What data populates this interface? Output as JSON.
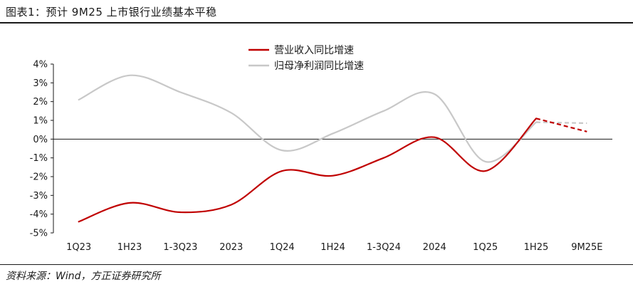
{
  "header": {
    "title": "图表1：预计 9M25 上市银行业绩基本平稳"
  },
  "footer": {
    "source": "资料来源：Wind，方正证券研究所"
  },
  "chart_data": {
    "type": "line",
    "categories": [
      "1Q23",
      "1H23",
      "1-3Q23",
      "2023",
      "1Q24",
      "1H24",
      "1-3Q24",
      "2024",
      "1Q25",
      "1H25",
      "9M25E"
    ],
    "ylim": [
      -5,
      4
    ],
    "yticks": [
      4,
      3,
      2,
      1,
      0,
      -1,
      -2,
      -3,
      -4,
      -5
    ],
    "ytick_labels": [
      "4%",
      "3%",
      "2%",
      "1%",
      "0%",
      "-1%",
      "-2%",
      "-3%",
      "-4%",
      "-5%"
    ],
    "legend_position": "top-center",
    "grid": false,
    "smooth": true,
    "series": [
      {
        "name": "营业收入同比增速",
        "color": "#c00000",
        "values": [
          -4.4,
          -3.4,
          -3.9,
          -3.5,
          -1.7,
          -1.95,
          -1.0,
          0.1,
          -1.7,
          1.1,
          0.4
        ],
        "dashed_from_index": 9
      },
      {
        "name": "归母净利润同比增速",
        "color": "#c8c8c8",
        "values": [
          2.1,
          3.4,
          2.5,
          1.4,
          -0.6,
          0.3,
          1.5,
          2.4,
          -1.2,
          0.9,
          0.85
        ],
        "dashed_from_index": 9
      }
    ]
  }
}
